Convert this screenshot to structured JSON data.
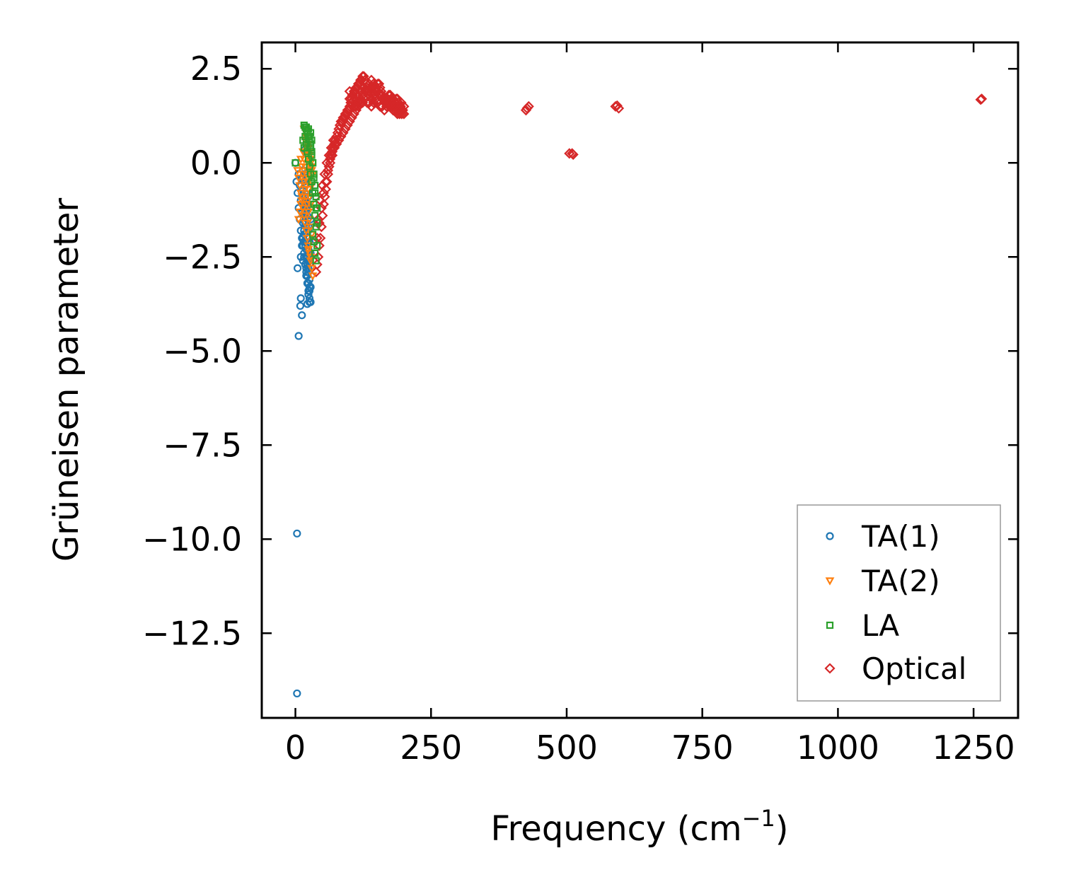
{
  "chart_data": {
    "type": "scatter",
    "title": "",
    "xlabel": "Frequency (cm",
    "xlabel_superscript": "−1",
    "xlabel_suffix": ")",
    "ylabel": "Grüneisen parameter",
    "xlim": [
      -62,
      1332
    ],
    "ylim": [
      -14.75,
      3.2
    ],
    "xticks": [
      0,
      250,
      500,
      750,
      1000,
      1250
    ],
    "xtick_labels": [
      "0",
      "250",
      "500",
      "750",
      "1000",
      "1250"
    ],
    "yticks": [
      2.5,
      0.0,
      -2.5,
      -5.0,
      -7.5,
      -10.0,
      -12.5
    ],
    "ytick_labels": [
      "2.5",
      "0.0",
      "−2.5",
      "−5.0",
      "−7.5",
      "−10.0",
      "−12.5"
    ],
    "grid": false,
    "legend_position": "lower-right",
    "series": [
      {
        "name": "TA(1)",
        "label": "TA(1)",
        "marker": "circle",
        "color": "#1f77b4",
        "x": [
          0,
          2,
          4,
          6,
          8,
          10,
          12,
          14,
          16,
          18,
          20,
          22,
          24,
          26,
          6,
          8,
          10,
          12,
          14,
          16,
          18,
          20,
          22,
          24,
          12,
          14,
          16,
          18,
          20,
          22,
          24,
          26,
          14,
          16,
          18,
          20,
          22,
          24,
          26,
          16,
          18,
          20,
          22,
          24,
          26,
          28,
          10,
          12,
          14,
          16,
          18,
          20,
          22,
          24,
          26,
          28,
          14,
          16,
          18,
          20,
          22,
          24,
          26,
          28,
          20,
          22,
          24,
          26,
          28,
          22,
          24,
          26,
          28,
          24,
          26,
          28,
          9,
          12,
          6,
          4,
          10,
          17,
          20,
          3,
          3,
          15,
          22,
          24,
          26,
          18,
          20
        ],
        "y": [
          0.0,
          -0.5,
          -0.8,
          -1.2,
          -1.5,
          -1.8,
          -2.0,
          -2.2,
          -2.5,
          -2.7,
          -2.9,
          -3.0,
          -3.2,
          -3.4,
          -0.3,
          -0.6,
          -1.0,
          -1.3,
          -1.6,
          -1.9,
          -2.1,
          -2.3,
          -2.6,
          -2.8,
          -0.4,
          -0.7,
          -1.1,
          -1.4,
          -1.7,
          -2.0,
          -2.3,
          -2.6,
          -0.2,
          -0.5,
          -0.9,
          -1.2,
          -1.5,
          -1.8,
          -2.1,
          -0.3,
          -0.6,
          -1.0,
          -1.4,
          -1.7,
          -2.0,
          -2.4,
          -2.5,
          -2.2,
          -2.0,
          -1.8,
          -1.6,
          -1.3,
          -1.1,
          -0.9,
          -0.7,
          -1.5,
          -2.6,
          -2.4,
          -2.2,
          -2.8,
          -2.5,
          -2.9,
          -3.1,
          -3.3,
          -3.0,
          -3.2,
          -3.4,
          -3.6,
          -3.7,
          -2.7,
          -2.9,
          -3.1,
          -3.3,
          -3.5,
          -3.7,
          -2.5,
          -3.8,
          -4.05,
          -4.6,
          -2.8,
          -3.6,
          0.35,
          0.25,
          -9.85,
          -14.1,
          -2.1,
          -3.75,
          -3.5,
          -3.3,
          -1.0,
          -0.4
        ]
      },
      {
        "name": "TA(2)",
        "label": "TA(2)",
        "marker": "triangle-down",
        "color": "#ff7f0e",
        "x": [
          4,
          6,
          8,
          10,
          12,
          14,
          16,
          18,
          20,
          22,
          24,
          26,
          28,
          30,
          32,
          10,
          12,
          14,
          16,
          18,
          20,
          22,
          24,
          26,
          28,
          30,
          14,
          16,
          18,
          20,
          22,
          24,
          26,
          28,
          18,
          20,
          22,
          24,
          26,
          28,
          30,
          20,
          22,
          24,
          26,
          28,
          30,
          24,
          26,
          28,
          30,
          32,
          6,
          8,
          10,
          12,
          16,
          20,
          24,
          28
        ],
        "y": [
          -0.2,
          -0.4,
          -0.6,
          -0.8,
          -1.0,
          -1.2,
          -1.4,
          -1.6,
          -1.8,
          -2.0,
          -2.2,
          -2.4,
          -2.6,
          -2.8,
          -3.0,
          0.1,
          -0.1,
          -0.3,
          -0.5,
          -0.7,
          -0.9,
          -1.1,
          -1.3,
          -1.5,
          -1.7,
          -1.9,
          0.3,
          0.1,
          -0.1,
          -0.3,
          -0.5,
          -0.7,
          -0.9,
          -1.1,
          0.6,
          0.4,
          0.2,
          0.0,
          -0.2,
          -0.4,
          -0.6,
          0.8,
          0.6,
          0.4,
          0.2,
          0.0,
          -0.2,
          0.5,
          0.3,
          0.1,
          -0.1,
          -0.3,
          -1.5,
          -1.3,
          -1.1,
          -0.9,
          0.9,
          0.7,
          -2.3,
          -2.5
        ]
      },
      {
        "name": "LA",
        "label": "LA",
        "marker": "square",
        "color": "#2ca02c",
        "x": [
          0,
          16,
          18,
          20,
          22,
          24,
          26,
          28,
          30,
          32,
          34,
          36,
          38,
          40,
          18,
          20,
          22,
          24,
          26,
          28,
          30,
          32,
          34,
          36,
          38,
          24,
          26,
          28,
          30,
          32,
          34,
          36,
          38,
          40,
          28,
          30,
          32,
          34,
          36,
          38,
          40,
          20,
          22,
          14,
          16
        ],
        "y": [
          0.0,
          1.0,
          0.95,
          0.9,
          0.8,
          0.7,
          0.6,
          0.4,
          0.2,
          0.0,
          -0.3,
          -0.6,
          -0.9,
          -1.2,
          0.7,
          0.5,
          0.3,
          0.1,
          -0.1,
          -0.3,
          -0.5,
          -0.8,
          -1.1,
          -1.4,
          -1.7,
          0.9,
          0.7,
          0.5,
          0.3,
          0.0,
          -0.4,
          -0.8,
          -1.2,
          -1.6,
          0.8,
          0.6,
          -1.9,
          -2.1,
          -2.4,
          -2.6,
          -2.2,
          0.95,
          0.85,
          0.6,
          0.4
        ]
      },
      {
        "name": "Optical",
        "label": "Optical",
        "marker": "diamond",
        "color": "#d62728",
        "x": [
          38,
          40,
          42,
          44,
          46,
          48,
          50,
          52,
          54,
          56,
          58,
          60,
          62,
          64,
          66,
          68,
          70,
          72,
          74,
          76,
          78,
          80,
          82,
          84,
          86,
          88,
          90,
          92,
          94,
          96,
          98,
          100,
          102,
          104,
          106,
          108,
          110,
          112,
          114,
          116,
          118,
          120,
          122,
          124,
          126,
          128,
          130,
          132,
          134,
          136,
          138,
          140,
          142,
          144,
          146,
          148,
          150,
          152,
          154,
          156,
          158,
          160,
          162,
          164,
          166,
          168,
          170,
          172,
          174,
          176,
          178,
          180,
          182,
          184,
          186,
          188,
          190,
          192,
          194,
          196,
          198,
          200,
          40,
          44,
          48,
          52,
          56,
          60,
          64,
          68,
          72,
          76,
          80,
          84,
          88,
          92,
          96,
          100,
          104,
          108,
          112,
          116,
          120,
          124,
          128,
          132,
          136,
          140,
          144,
          148,
          152,
          156,
          160,
          164,
          168,
          172,
          176,
          180,
          184,
          188,
          192,
          196,
          100,
          105,
          110,
          115,
          120,
          125,
          130,
          135,
          140,
          145,
          150,
          155,
          160,
          165,
          170,
          175,
          180,
          185,
          190,
          195,
          100,
          104,
          108,
          112,
          116,
          120,
          124,
          128,
          132,
          136,
          140,
          144,
          148,
          152,
          156,
          160,
          164,
          168,
          172,
          176,
          180,
          184,
          188,
          192,
          196,
          200,
          42,
          46,
          50,
          54,
          58,
          62,
          66,
          70,
          425,
          430,
          427,
          505,
          510,
          512,
          590,
          596,
          593,
          1263,
          1265
        ],
        "y": [
          -2.9,
          -2.7,
          -2.5,
          -2.2,
          -2.0,
          -1.7,
          -1.4,
          -1.1,
          -0.9,
          -0.7,
          -0.5,
          -0.3,
          -0.1,
          0.1,
          0.2,
          0.3,
          0.4,
          0.5,
          0.6,
          0.7,
          0.8,
          0.9,
          1.0,
          1.1,
          1.1,
          1.2,
          1.2,
          1.3,
          1.3,
          1.4,
          1.4,
          1.5,
          1.6,
          1.7,
          1.8,
          1.9,
          1.9,
          2.0,
          2.0,
          2.1,
          2.1,
          2.2,
          2.2,
          2.3,
          2.3,
          2.2,
          2.1,
          2.0,
          1.9,
          1.9,
          2.0,
          2.0,
          1.9,
          1.8,
          1.8,
          1.9,
          2.0,
          2.1,
          2.1,
          2.0,
          1.9,
          1.8,
          1.7,
          1.7,
          1.6,
          1.6,
          1.7,
          1.8,
          1.8,
          1.7,
          1.6,
          1.5,
          1.5,
          1.6,
          1.7,
          1.7,
          1.6,
          1.5,
          1.5,
          1.4,
          1.4,
          1.5,
          -2.0,
          -1.6,
          -1.2,
          -0.8,
          -0.5,
          -0.2,
          0.0,
          0.2,
          0.4,
          0.5,
          0.6,
          0.7,
          0.8,
          0.9,
          1.0,
          1.1,
          1.2,
          1.3,
          1.4,
          1.5,
          1.6,
          1.6,
          1.7,
          1.6,
          1.6,
          1.5,
          1.6,
          1.7,
          1.6,
          1.5,
          1.5,
          1.4,
          1.5,
          1.6,
          1.5,
          1.4,
          1.4,
          1.3,
          1.3,
          1.4,
          1.9,
          1.8,
          1.7,
          1.8,
          1.9,
          2.0,
          1.9,
          1.8,
          1.7,
          1.8,
          1.9,
          1.8,
          1.7,
          1.6,
          1.7,
          1.8,
          1.7,
          1.6,
          1.5,
          1.6,
          1.7,
          1.6,
          1.5,
          1.5,
          1.6,
          1.7,
          1.8,
          1.9,
          2.0,
          2.1,
          2.2,
          2.1,
          2.0,
          1.9,
          1.8,
          1.8,
          1.7,
          1.7,
          1.6,
          1.6,
          1.5,
          1.5,
          1.4,
          1.4,
          1.3,
          1.3,
          -1.5,
          -1.0,
          -0.6,
          -0.3,
          0.0,
          0.2,
          0.4,
          0.6,
          1.4,
          1.5,
          1.45,
          0.25,
          0.25,
          0.22,
          1.5,
          1.45,
          1.52,
          1.68,
          1.7
        ]
      }
    ]
  }
}
